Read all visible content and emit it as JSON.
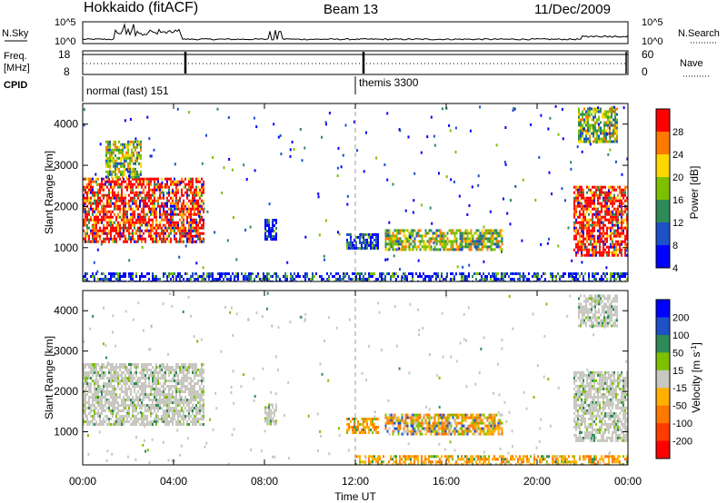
{
  "header": {
    "title": "Hokkaido (fitACF)",
    "beam": "Beam 13",
    "date": "11/Dec/2009"
  },
  "top_panels": {
    "nsky_label": "N.Sky",
    "nsky_ticks": [
      "10^5",
      "10^0"
    ],
    "nsearch_label": "N.Search",
    "nsearch_ticks": [
      "10^5",
      "10^0"
    ],
    "freq_label_line1": "Freq.",
    "freq_label_line2": "[MHz]",
    "freq_ticks": [
      "18",
      "8"
    ],
    "nave_label": "Nave",
    "nave_ticks": [
      "60",
      "0"
    ],
    "cpid_label": "CPID",
    "cpid_modes": [
      {
        "text": "normal (fast) 151",
        "start_hour": 0
      },
      {
        "text": "themis 3300",
        "start_hour": 12
      }
    ]
  },
  "chart_data": [
    {
      "type": "heatmap",
      "ylabel": "Slant Range [km]",
      "yticks": [
        1000,
        2000,
        3000,
        4000
      ],
      "ylim": [
        180,
        4500
      ],
      "colorbar": {
        "label": "Power [dB]",
        "ticks": [
          "28",
          "24",
          "20",
          "16",
          "12",
          "8",
          "4"
        ],
        "colors": [
          "#ff0000",
          "#ff7800",
          "#ffd700",
          "#7cc000",
          "#2e8b57",
          "#1e50c8",
          "#0000ff"
        ]
      },
      "echo_regions": [
        {
          "x0": 0.0,
          "x1": 5.3,
          "y0": 1150,
          "y1": 2700,
          "level": "high"
        },
        {
          "x0": 1.0,
          "x1": 2.6,
          "y0": 2700,
          "y1": 3600,
          "level": "mid"
        },
        {
          "x0": 21.6,
          "x1": 24.0,
          "y0": 800,
          "y1": 2500,
          "level": "high"
        },
        {
          "x0": 21.8,
          "x1": 23.5,
          "y0": 3600,
          "y1": 4400,
          "level": "mid"
        },
        {
          "x0": 13.3,
          "x1": 18.5,
          "y0": 950,
          "y1": 1450,
          "level": "mid"
        },
        {
          "x0": 11.6,
          "x1": 13.0,
          "y0": 1000,
          "y1": 1350,
          "level": "low"
        },
        {
          "x0": 8.0,
          "x1": 8.5,
          "y0": 1200,
          "y1": 1700,
          "level": "low"
        },
        {
          "x0": 0.0,
          "x1": 24.0,
          "y0": 200,
          "y1": 400,
          "level": "low"
        }
      ]
    },
    {
      "type": "heatmap",
      "ylabel": "Slant Range [km]",
      "yticks": [
        1000,
        2000,
        3000,
        4000
      ],
      "ylim": [
        180,
        4500
      ],
      "colorbar": {
        "label": "Velocity [m s^-1]",
        "ticks": [
          "200",
          "100",
          "50",
          "15",
          "-15",
          "-50",
          "-100",
          "-200"
        ],
        "colors": [
          "#0000ff",
          "#1e50c8",
          "#2e8b57",
          "#7cc000",
          "#c8c8c0",
          "#ffb000",
          "#ff7800",
          "#ff3c00",
          "#ff0000"
        ]
      },
      "echo_regions": [
        {
          "x0": 0.0,
          "x1": 5.3,
          "y0": 1150,
          "y1": 2700,
          "vel": "ground"
        },
        {
          "x0": 21.6,
          "x1": 24.0,
          "y0": 800,
          "y1": 2500,
          "vel": "ground"
        },
        {
          "x0": 21.8,
          "x1": 23.5,
          "y0": 3600,
          "y1": 4400,
          "vel": "ground"
        },
        {
          "x0": 8.0,
          "x1": 8.5,
          "y0": 1200,
          "y1": 1700,
          "vel": "ground"
        },
        {
          "x0": 13.3,
          "x1": 18.5,
          "y0": 950,
          "y1": 1450,
          "vel": "mixed"
        },
        {
          "x0": 11.6,
          "x1": 13.0,
          "y0": 1000,
          "y1": 1350,
          "vel": "away"
        },
        {
          "x0": 12.0,
          "x1": 24.0,
          "y0": 200,
          "y1": 420,
          "vel": "away"
        }
      ]
    }
  ],
  "xaxis": {
    "label": "Time UT",
    "ticks": [
      "00:00",
      "04:00",
      "08:00",
      "12:00",
      "16:00",
      "20:00",
      "00:00"
    ]
  }
}
